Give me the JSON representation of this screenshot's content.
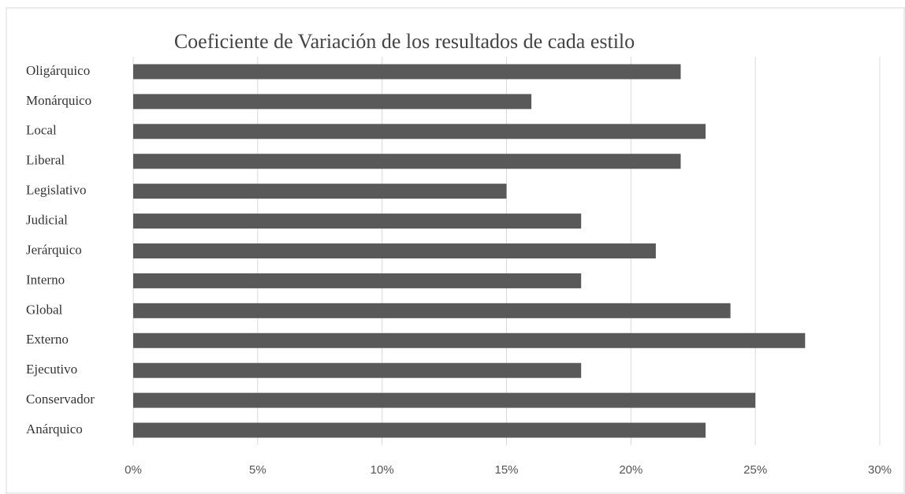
{
  "chart_data": {
    "type": "barh",
    "title": "Coeficiente de Variación de los resultados de cada estilo",
    "categories": [
      "Oligárquico",
      "Monárquico",
      "Local",
      "Liberal",
      "Legislativo",
      "Judicial",
      "Jerárquico",
      "Interno",
      "Global",
      "Externo",
      "Ejecutivo",
      "Conservador",
      "Anárquico"
    ],
    "values": [
      22,
      16,
      23,
      22,
      15,
      18,
      21,
      18,
      24,
      27,
      18,
      25,
      23
    ],
    "color": "#595959",
    "xlim": [
      0,
      30
    ],
    "xticks": [
      {
        "value": 0,
        "label": "0%"
      },
      {
        "value": 5,
        "label": "5%"
      },
      {
        "value": 10,
        "label": "10%"
      },
      {
        "value": 15,
        "label": "15%"
      },
      {
        "value": 20,
        "label": "20%"
      },
      {
        "value": 25,
        "label": "25%"
      },
      {
        "value": 30,
        "label": "30%"
      }
    ],
    "grid": true
  }
}
